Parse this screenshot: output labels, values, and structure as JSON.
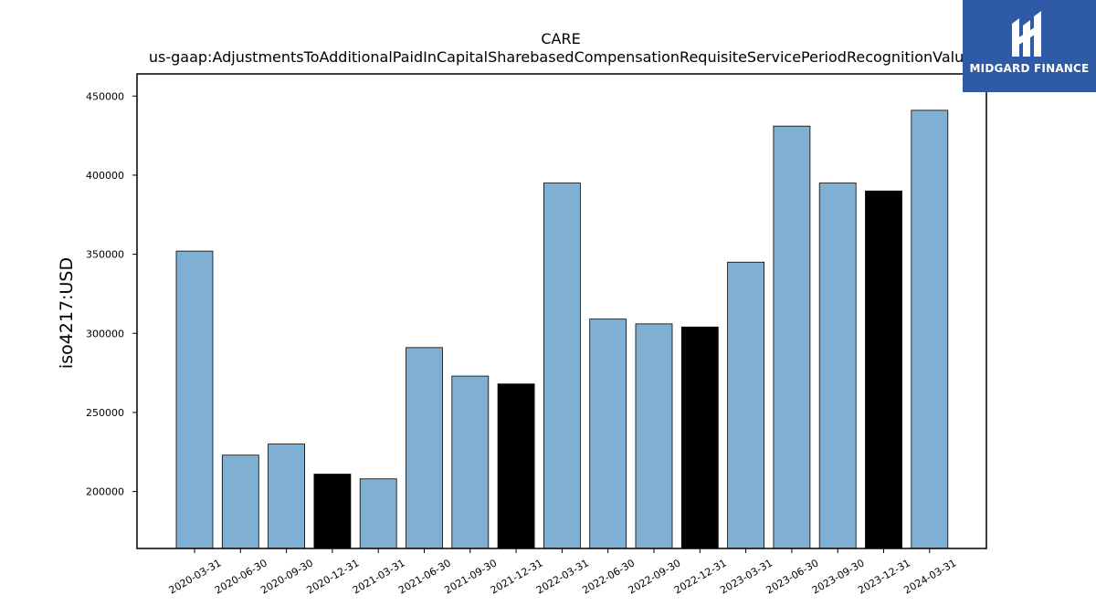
{
  "chart_data": {
    "type": "bar",
    "title": "CARE",
    "subtitle": "us-gaap:AdjustmentsToAdditionalPaidInCapitalSharebasedCompensationRequisiteServicePeriodRecognitionValue",
    "ylabel": "iso4217:USD",
    "xlabel": "",
    "ylim": [
      164000,
      464000
    ],
    "yticks": [
      200000,
      250000,
      300000,
      350000,
      400000,
      450000
    ],
    "grid": false,
    "categories": [
      "2020-03-31",
      "2020-06-30",
      "2020-09-30",
      "2020-12-31",
      "2021-03-31",
      "2021-06-30",
      "2021-09-30",
      "2021-12-31",
      "2022-03-31",
      "2022-06-30",
      "2022-09-30",
      "2022-12-31",
      "2023-03-31",
      "2023-06-30",
      "2023-09-30",
      "2023-12-31",
      "2024-03-31"
    ],
    "values": [
      352000,
      223000,
      230000,
      211000,
      208000,
      291000,
      273000,
      268000,
      395000,
      309000,
      306000,
      304000,
      345000,
      431000,
      395000,
      390000,
      441000
    ],
    "highlighted": [
      "2020-12-31",
      "2021-12-31",
      "2022-12-31",
      "2023-12-31"
    ],
    "colors": {
      "bar": "#7fafd3",
      "highlight": "#000000",
      "edge": "#000000"
    }
  },
  "logo": {
    "text": "MIDGARD FINANCE",
    "background": "#2f5aa6"
  }
}
